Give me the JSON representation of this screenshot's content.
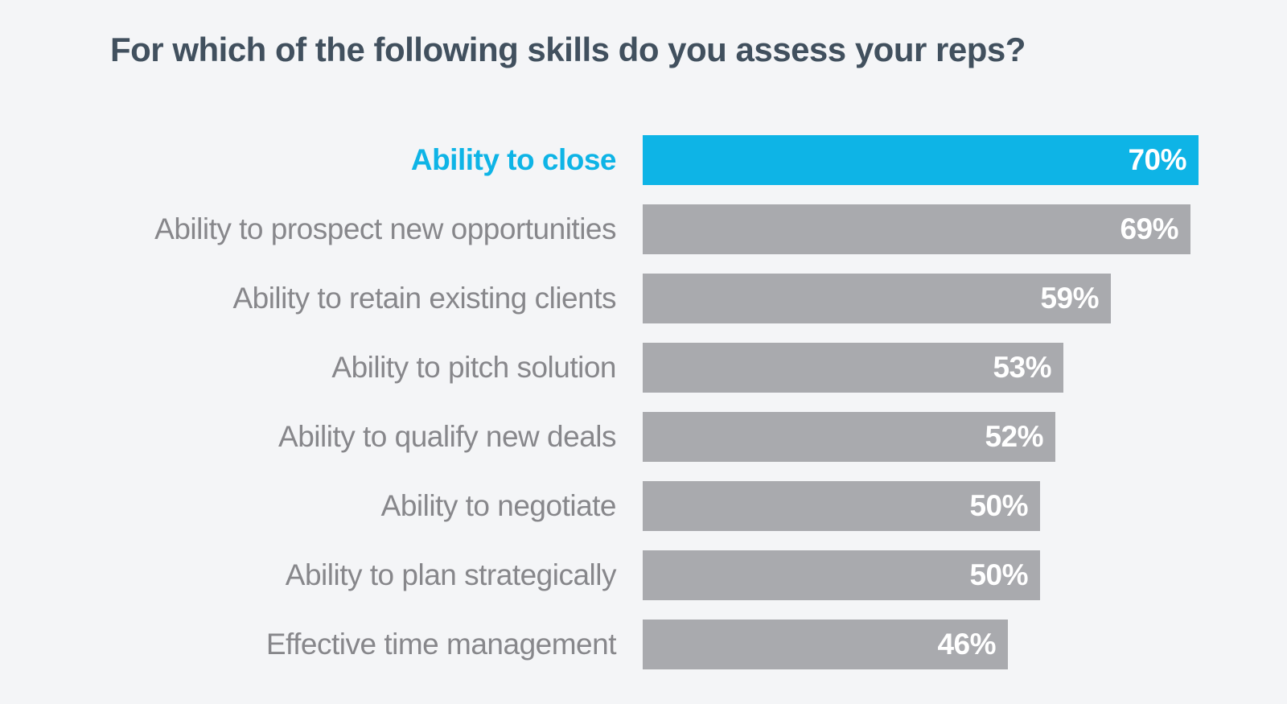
{
  "title": "For which of the following skills do you assess your reps?",
  "chart_data": {
    "type": "bar",
    "orientation": "horizontal",
    "title": "For which of the following skills do you assess your reps?",
    "categories": [
      "Ability to close",
      "Ability to prospect new opportunities",
      "Ability to retain existing clients",
      "Ability to pitch solution",
      "Ability to qualify new deals",
      "Ability to negotiate",
      "Ability to plan strategically",
      "Effective time management"
    ],
    "values": [
      70,
      69,
      59,
      53,
      52,
      50,
      50,
      46
    ],
    "value_labels": [
      "70%",
      "69%",
      "59%",
      "53%",
      "52%",
      "50%",
      "50%",
      "46%"
    ],
    "unit": "%",
    "xlim": [
      0,
      70
    ],
    "highlight_index": 0,
    "grid": false,
    "legend": "none",
    "value_label_position": "inside-end",
    "colors": {
      "highlight_bar": "#0eb4e6",
      "default_bar": "#a9aaae",
      "value_text": "#ffffff",
      "category_text": "#87878b",
      "highlight_category_text": "#0eb4e6",
      "title_text": "#41505e",
      "background": "#f4f5f7"
    }
  }
}
